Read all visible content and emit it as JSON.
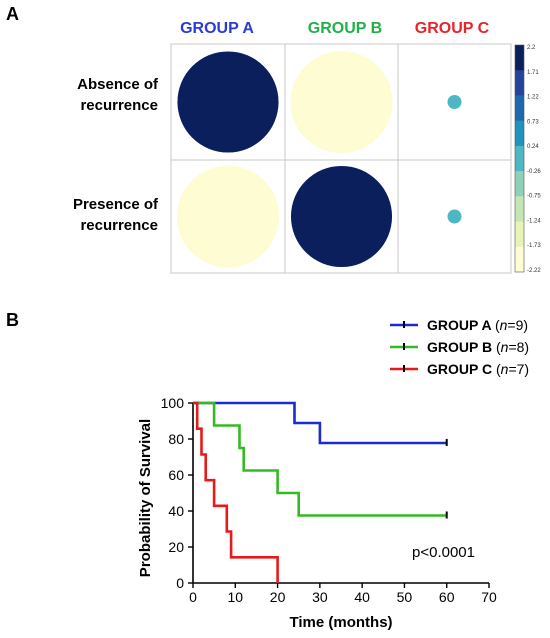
{
  "panel_a": {
    "letter": "A",
    "columns": [
      {
        "label": "GROUP A",
        "color": "#2b3bd6"
      },
      {
        "label": "GROUP B",
        "color": "#22b04a"
      },
      {
        "label": "GROUP C",
        "color": "#e8232a"
      }
    ],
    "rows": [
      {
        "line1": "Absence of",
        "line2": "recurrence"
      },
      {
        "line1": "Presence of",
        "line2": "recurrence"
      }
    ],
    "colorbar_ticks": [
      "2.2",
      "1.71",
      "1.22",
      "0.73",
      "0.24",
      "-0.26",
      "-0.75",
      "-1.24",
      "-1.73",
      "-2.22"
    ]
  },
  "panel_b": {
    "letter": "B",
    "annotation": "p<0.0001"
  },
  "chart_data": [
    {
      "type": "heatmap",
      "x_categories": [
        "GROUP A",
        "GROUP B",
        "GROUP C"
      ],
      "y_categories": [
        "Absence of recurrence",
        "Presence of recurrence"
      ],
      "values": [
        [
          2.2,
          -2.22,
          0.24
        ],
        [
          -2.22,
          2.2,
          0.24
        ]
      ],
      "size_encoding": "absolute value",
      "colorbar": {
        "min": -2.22,
        "max": 2.2
      },
      "palette": [
        "#fdfcd2",
        "#e8f3b6",
        "#c3e6b3",
        "#8dd2b8",
        "#4db8c4",
        "#1f92bd",
        "#1e68ae",
        "#22449a",
        "#0a1f5c"
      ]
    },
    {
      "type": "line",
      "step": true,
      "xlabel": "Time (months)",
      "ylabel": "Probability of Survival",
      "xlim": [
        0,
        70
      ],
      "ylim": [
        0,
        100
      ],
      "xticks": [
        0,
        10,
        20,
        30,
        40,
        50,
        60,
        70
      ],
      "yticks": [
        0,
        20,
        40,
        60,
        80,
        100
      ],
      "legend_position": "top-right",
      "series": [
        {
          "name": "GROUP A",
          "n_label": "n",
          "n_value": "=9",
          "color": "#1a2bd6",
          "points": [
            [
              0,
              100
            ],
            [
              24,
              100
            ],
            [
              24,
              88.9
            ],
            [
              30,
              88.9
            ],
            [
              30,
              77.8
            ],
            [
              60,
              77.8
            ]
          ],
          "censored_at": [
            60
          ]
        },
        {
          "name": "GROUP B",
          "n_label": "n",
          "n_value": "=8",
          "color": "#33bb22",
          "points": [
            [
              0,
              100
            ],
            [
              5,
              100
            ],
            [
              5,
              87.5
            ],
            [
              11,
              87.5
            ],
            [
              11,
              75
            ],
            [
              12,
              75
            ],
            [
              12,
              62.5
            ],
            [
              20,
              62.5
            ],
            [
              20,
              50
            ],
            [
              25,
              50
            ],
            [
              25,
              37.5
            ],
            [
              60,
              37.5
            ]
          ],
          "censored_at": [
            60
          ]
        },
        {
          "name": "GROUP C",
          "n_label": "n",
          "n_value": "=7",
          "color": "#e51b1b",
          "points": [
            [
              0,
              100
            ],
            [
              1,
              100
            ],
            [
              1,
              85.7
            ],
            [
              2,
              85.7
            ],
            [
              2,
              71.4
            ],
            [
              3,
              71.4
            ],
            [
              3,
              57.1
            ],
            [
              5,
              57.1
            ],
            [
              5,
              42.9
            ],
            [
              8,
              42.9
            ],
            [
              8,
              28.6
            ],
            [
              9,
              28.6
            ],
            [
              9,
              14.3
            ],
            [
              20,
              14.3
            ],
            [
              20,
              0
            ]
          ],
          "censored_at": []
        }
      ]
    }
  ]
}
